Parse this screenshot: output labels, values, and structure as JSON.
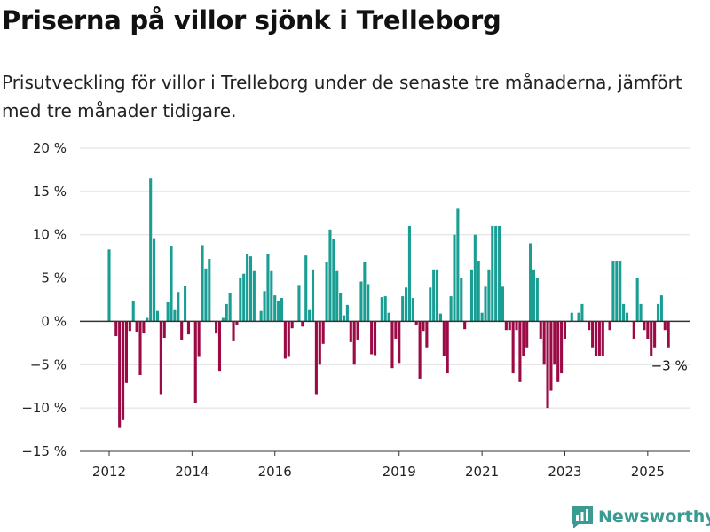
{
  "title": "Priserna på villor sjönk i Trelleborg",
  "subtitle": "Prisutveckling för villor i Trelleborg under de senaste tre månaderna, jämfört med tre månader tidigare.",
  "brand": {
    "name": "Newsworthy",
    "icon": "bar-chart-logo-icon"
  },
  "colors": {
    "positive": "#1a9e94",
    "negative": "#9b0a45",
    "grid": "#dddddd",
    "axis": "#333333"
  },
  "chart_data": {
    "type": "bar",
    "title": "Priserna på villor sjönk i Trelleborg",
    "xlabel": "",
    "ylabel": "",
    "ylim": [
      -15,
      20
    ],
    "yticks": [
      -15,
      -10,
      -5,
      0,
      5,
      10,
      15,
      20
    ],
    "ytick_labels": [
      "−15 %",
      "−10 %",
      "−5 %",
      "0 %",
      "5 %",
      "10 %",
      "15 %",
      "20 %"
    ],
    "xticks": [
      {
        "x": "2012-01",
        "label": "2012"
      },
      {
        "x": "2014-01",
        "label": "2014"
      },
      {
        "x": "2016-01",
        "label": "2016"
      },
      {
        "x": "2019-01",
        "label": "2019"
      },
      {
        "x": "2021-01",
        "label": "2021"
      },
      {
        "x": "2023-01",
        "label": "2023"
      },
      {
        "x": "2025-01",
        "label": "2025"
      }
    ],
    "grid": true,
    "end_label": "−3 %",
    "x": [
      "2012-01",
      "2012-02",
      "2012-03",
      "2012-04",
      "2012-05",
      "2012-06",
      "2012-07",
      "2012-08",
      "2012-09",
      "2012-10",
      "2012-11",
      "2012-12",
      "2013-01",
      "2013-02",
      "2013-03",
      "2013-04",
      "2013-05",
      "2013-06",
      "2013-07",
      "2013-08",
      "2013-09",
      "2013-10",
      "2013-11",
      "2013-12",
      "2014-01",
      "2014-02",
      "2014-03",
      "2014-04",
      "2014-05",
      "2014-06",
      "2014-07",
      "2014-08",
      "2014-09",
      "2014-10",
      "2014-11",
      "2014-12",
      "2015-01",
      "2015-02",
      "2015-03",
      "2015-04",
      "2015-05",
      "2015-06",
      "2015-07",
      "2015-08",
      "2015-09",
      "2015-10",
      "2015-11",
      "2015-12",
      "2016-01",
      "2016-02",
      "2016-03",
      "2016-04",
      "2016-05",
      "2016-06",
      "2016-07",
      "2016-08",
      "2016-09",
      "2016-10",
      "2016-11",
      "2016-12",
      "2017-01",
      "2017-02",
      "2017-03",
      "2017-04",
      "2017-05",
      "2017-06",
      "2017-07",
      "2017-08",
      "2017-09",
      "2017-10",
      "2017-11",
      "2017-12",
      "2018-01",
      "2018-02",
      "2018-03",
      "2018-04",
      "2018-05",
      "2018-06",
      "2018-07",
      "2018-08",
      "2018-09",
      "2018-10",
      "2018-11",
      "2018-12",
      "2019-01",
      "2019-02",
      "2019-03",
      "2019-04",
      "2019-05",
      "2019-06",
      "2019-07",
      "2019-08",
      "2019-09",
      "2019-10",
      "2019-11",
      "2019-12",
      "2020-01",
      "2020-02",
      "2020-03",
      "2020-04",
      "2020-05",
      "2020-06",
      "2020-07",
      "2020-08",
      "2020-09",
      "2020-10",
      "2020-11",
      "2020-12",
      "2021-01",
      "2021-02",
      "2021-03",
      "2021-04",
      "2021-05",
      "2021-06",
      "2021-07",
      "2021-08",
      "2021-09",
      "2021-10",
      "2021-11",
      "2021-12",
      "2022-01",
      "2022-02",
      "2022-03",
      "2022-04",
      "2022-05",
      "2022-06",
      "2022-07",
      "2022-08",
      "2022-09",
      "2022-10",
      "2022-11",
      "2022-12",
      "2023-01",
      "2023-02",
      "2023-03",
      "2023-04",
      "2023-05",
      "2023-06",
      "2023-07",
      "2023-08",
      "2023-09",
      "2023-10",
      "2023-11",
      "2023-12",
      "2024-01",
      "2024-02",
      "2024-03",
      "2024-04",
      "2024-05",
      "2024-06",
      "2024-07",
      "2024-08",
      "2024-09",
      "2024-10",
      "2024-11",
      "2024-12",
      "2025-01",
      "2025-02",
      "2025-03",
      "2025-04",
      "2025-05",
      "2025-06",
      "2025-07"
    ],
    "values": [
      8.3,
      0,
      -1.7,
      -12.3,
      -11.4,
      -7.1,
      -1.1,
      2.3,
      -1.2,
      -6.2,
      -1.4,
      0.4,
      16.5,
      9.6,
      1.2,
      -8.4,
      -1.9,
      2.2,
      8.7,
      1.3,
      3.4,
      -2.2,
      4.1,
      -1.5,
      0,
      -9.4,
      -4.1,
      8.8,
      6.1,
      7.2,
      0,
      -1.4,
      -5.7,
      0.4,
      2.0,
      3.3,
      -2.3,
      -0.4,
      5.0,
      5.5,
      7.8,
      7.5,
      5.8,
      0,
      1.2,
      3.5,
      7.8,
      5.8,
      3.0,
      2.4,
      2.7,
      -4.3,
      -4.1,
      -0.8,
      0,
      4.2,
      -0.6,
      7.6,
      1.3,
      6.0,
      -8.4,
      -5.0,
      -2.6,
      6.8,
      10.6,
      9.5,
      5.8,
      3.3,
      0.7,
      1.9,
      -2.4,
      -5.0,
      -2.1,
      4.6,
      6.8,
      4.3,
      -3.8,
      -3.9,
      0,
      2.8,
      2.9,
      1.0,
      -5.4,
      -2.0,
      -4.8,
      2.9,
      3.9,
      11.0,
      2.7,
      -0.4,
      -6.6,
      -1.1,
      -3.0,
      3.9,
      6.0,
      6.0,
      0.9,
      -4.0,
      -6.0,
      2.9,
      10.0,
      13.0,
      5.0,
      -0.9,
      0,
      6.0,
      10.0,
      7.0,
      1.0,
      4.0,
      6.0,
      11.0,
      11.0,
      11.0,
      4.0,
      -1.0,
      -1.0,
      -6.0,
      -1.0,
      -7.0,
      -4.0,
      -3.0,
      9.0,
      6.0,
      5.0,
      -2.0,
      -5.0,
      -10.0,
      -8.0,
      -5.0,
      -7.0,
      -6.0,
      -2.0,
      0,
      1.0,
      0,
      1.0,
      2.0,
      0,
      -1.0,
      -3.0,
      -4.0,
      -4.0,
      -4.0,
      0,
      -1.0,
      7.0,
      7.0,
      7.0,
      2.0,
      1.0,
      0,
      -2.0,
      5.0,
      2.0,
      -1.0,
      -2.0,
      -4.0,
      -3.0,
      2.0,
      3.0,
      -1.0,
      -3.0
    ]
  }
}
